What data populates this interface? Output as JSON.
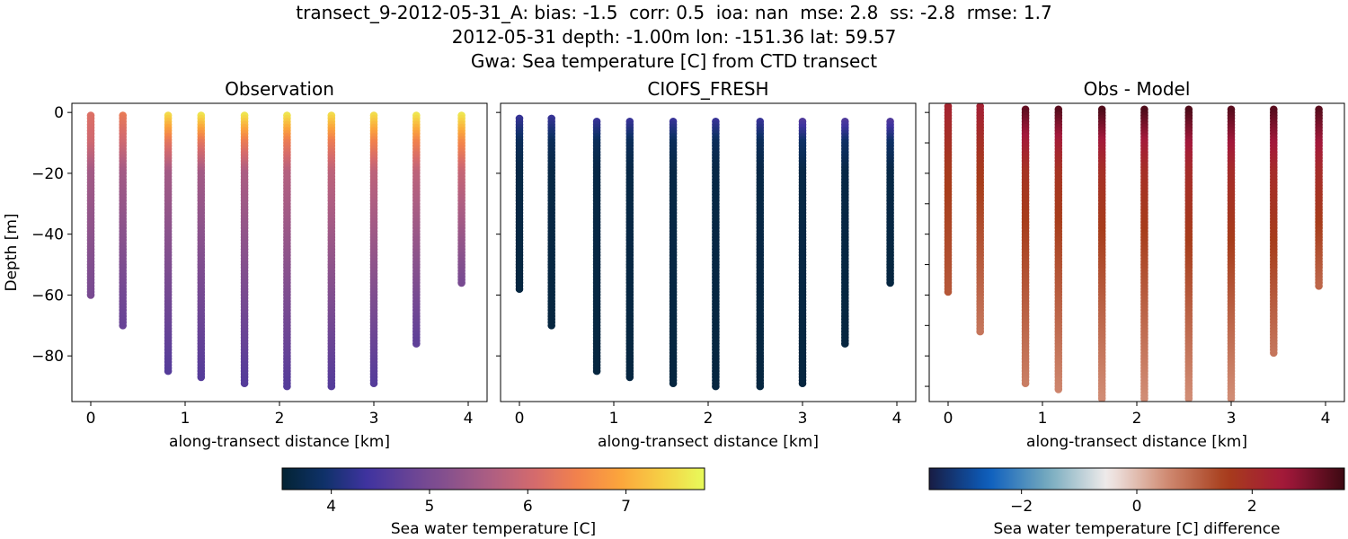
{
  "suptitle": {
    "line1": "transect_9-2012-05-31_A: bias: -1.5  corr: 0.5  ioa: nan  mse: 2.8  ss: -2.8  rmse: 1.7",
    "line2": "2012-05-31 depth: -1.00m lon: -151.36 lat: 59.57",
    "line3": "Gwa: Sea temperature [C] from CTD transect"
  },
  "chart_data": [
    {
      "type": "scatter",
      "title": "Observation",
      "xlabel": "along-transect distance [km]",
      "ylabel": "Depth [m]",
      "xlim": [
        -0.2,
        4.2
      ],
      "ylim": [
        -95,
        3
      ],
      "xticks": [
        0,
        1,
        2,
        3,
        4
      ],
      "yticks": [
        0,
        -20,
        -40,
        -60,
        -80
      ],
      "colormap": "thermal",
      "color_range": [
        3.5,
        7.8
      ],
      "stations": [
        {
          "x": 0.0,
          "top": -1,
          "bottom": -60,
          "surface": 6.2,
          "t10": 6.0,
          "t20": 5.5,
          "deep": 5.0
        },
        {
          "x": 0.34,
          "top": -1,
          "bottom": -70,
          "surface": 6.4,
          "t10": 6.0,
          "t20": 5.5,
          "deep": 4.8
        },
        {
          "x": 0.82,
          "top": -1,
          "bottom": -85,
          "surface": 7.6,
          "t10": 6.3,
          "t20": 5.5,
          "deep": 4.6
        },
        {
          "x": 1.17,
          "top": -1,
          "bottom": -87,
          "surface": 7.7,
          "t10": 6.3,
          "t20": 5.5,
          "deep": 4.6
        },
        {
          "x": 1.63,
          "top": -1,
          "bottom": -89,
          "surface": 7.7,
          "t10": 6.4,
          "t20": 5.6,
          "deep": 4.6
        },
        {
          "x": 2.08,
          "top": -1,
          "bottom": -90,
          "surface": 7.7,
          "t10": 6.4,
          "t20": 5.7,
          "deep": 4.6
        },
        {
          "x": 2.55,
          "top": -1,
          "bottom": -90,
          "surface": 7.6,
          "t10": 6.4,
          "t20": 5.8,
          "deep": 4.6
        },
        {
          "x": 3.0,
          "top": -1,
          "bottom": -89,
          "surface": 7.6,
          "t10": 6.5,
          "t20": 5.8,
          "deep": 4.6
        },
        {
          "x": 3.45,
          "top": -1,
          "bottom": -76,
          "surface": 7.7,
          "t10": 6.5,
          "t20": 5.8,
          "deep": 4.7
        },
        {
          "x": 3.93,
          "top": -1,
          "bottom": -56,
          "surface": 7.7,
          "t10": 6.6,
          "t20": 5.9,
          "deep": 5.0
        }
      ]
    },
    {
      "type": "scatter",
      "title": "CIOFS_FRESH",
      "xlabel": "along-transect distance [km]",
      "ylabel": "",
      "xlim": [
        -0.2,
        4.2
      ],
      "ylim": [
        -95,
        3
      ],
      "xticks": [
        0,
        1,
        2,
        3,
        4
      ],
      "yticks": [
        0,
        -20,
        -40,
        -60,
        -80
      ],
      "show_yticklabels": false,
      "colormap": "thermal",
      "color_range": [
        3.5,
        7.8
      ],
      "stations": [
        {
          "x": 0.0,
          "top": -2,
          "bottom": -58,
          "surface": 4.4,
          "t10": 3.8,
          "t20": 3.65,
          "deep": 3.6
        },
        {
          "x": 0.34,
          "top": -2,
          "bottom": -70,
          "surface": 4.4,
          "t10": 3.8,
          "t20": 3.65,
          "deep": 3.6
        },
        {
          "x": 0.82,
          "top": -3,
          "bottom": -85,
          "surface": 4.5,
          "t10": 3.8,
          "t20": 3.65,
          "deep": 3.6
        },
        {
          "x": 1.17,
          "top": -3,
          "bottom": -87,
          "surface": 4.5,
          "t10": 3.8,
          "t20": 3.65,
          "deep": 3.6
        },
        {
          "x": 1.63,
          "top": -3,
          "bottom": -89,
          "surface": 4.5,
          "t10": 3.8,
          "t20": 3.65,
          "deep": 3.6
        },
        {
          "x": 2.08,
          "top": -3,
          "bottom": -90,
          "surface": 4.5,
          "t10": 3.8,
          "t20": 3.65,
          "deep": 3.6
        },
        {
          "x": 2.55,
          "top": -3,
          "bottom": -90,
          "surface": 4.5,
          "t10": 3.8,
          "t20": 3.65,
          "deep": 3.6
        },
        {
          "x": 3.0,
          "top": -3,
          "bottom": -89,
          "surface": 4.8,
          "t10": 3.9,
          "t20": 3.65,
          "deep": 3.6
        },
        {
          "x": 3.45,
          "top": -3,
          "bottom": -76,
          "surface": 4.8,
          "t10": 3.9,
          "t20": 3.65,
          "deep": 3.6
        },
        {
          "x": 3.93,
          "top": -3,
          "bottom": -56,
          "surface": 4.8,
          "t10": 3.9,
          "t20": 3.65,
          "deep": 3.6
        }
      ]
    },
    {
      "type": "scatter",
      "title": "Obs - Model",
      "xlabel": "along-transect distance [km]",
      "ylabel": "",
      "xlim": [
        -0.2,
        4.2
      ],
      "ylim": [
        -95,
        3
      ],
      "xticks": [
        0,
        1,
        2,
        3,
        4
      ],
      "yticks": [
        0,
        -10,
        -20,
        -30,
        -40,
        -50,
        -60,
        -70,
        -80,
        -90
      ],
      "show_yticklabels": false,
      "colormap": "balance",
      "color_range": [
        -3.6,
        3.6
      ],
      "stations": [
        {
          "x": 0.0,
          "top": 2,
          "bottom": -59,
          "surface": 2.2,
          "t10": 1.9,
          "t20": 1.6,
          "deep": 1.2
        },
        {
          "x": 0.34,
          "top": 2,
          "bottom": -72,
          "surface": 2.3,
          "t10": 1.9,
          "t20": 1.6,
          "deep": 0.8
        },
        {
          "x": 0.82,
          "top": 1,
          "bottom": -89,
          "surface": 3.2,
          "t10": 2.4,
          "t20": 1.8,
          "deep": 0.7
        },
        {
          "x": 1.17,
          "top": 1,
          "bottom": -91,
          "surface": 3.3,
          "t10": 2.4,
          "t20": 1.8,
          "deep": 0.6
        },
        {
          "x": 1.63,
          "top": 1,
          "bottom": -94,
          "surface": 3.4,
          "t10": 2.5,
          "t20": 1.9,
          "deep": 0.5
        },
        {
          "x": 2.08,
          "top": 1,
          "bottom": -94,
          "surface": 3.4,
          "t10": 2.5,
          "t20": 1.9,
          "deep": 0.5
        },
        {
          "x": 2.55,
          "top": 1,
          "bottom": -94,
          "surface": 3.4,
          "t10": 2.6,
          "t20": 2.0,
          "deep": 0.5
        },
        {
          "x": 3.0,
          "top": 1,
          "bottom": -94,
          "surface": 3.3,
          "t10": 2.6,
          "t20": 2.0,
          "deep": 0.5
        },
        {
          "x": 3.45,
          "top": 1,
          "bottom": -79,
          "surface": 3.3,
          "t10": 2.6,
          "t20": 2.0,
          "deep": 0.8
        },
        {
          "x": 3.93,
          "top": 1,
          "bottom": -57,
          "surface": 3.3,
          "t10": 2.6,
          "t20": 2.0,
          "deep": 1.0
        }
      ]
    }
  ],
  "colorbars": [
    {
      "label": "Sea water temperature [C]",
      "colormap": "thermal",
      "range": [
        3.5,
        7.8
      ],
      "ticks": [
        4,
        5,
        6,
        7
      ],
      "tick_labels": [
        "4",
        "5",
        "6",
        "7"
      ]
    },
    {
      "label": "Sea water temperature [C] difference",
      "colormap": "balance",
      "range": [
        -3.6,
        3.6
      ],
      "ticks": [
        -2,
        0,
        2
      ],
      "tick_labels": [
        "−2",
        "0",
        "2"
      ]
    }
  ]
}
